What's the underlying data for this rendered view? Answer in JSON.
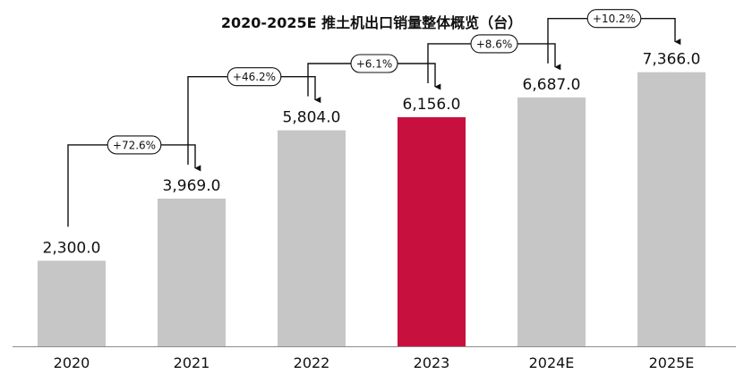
{
  "chart_data": {
    "type": "bar",
    "title": "2020-2025E 推土机出口销量整体概览（台）",
    "categories": [
      "2020",
      "2021",
      "2022",
      "2023",
      "2024E",
      "2025E"
    ],
    "values": [
      2300.0,
      3969.0,
      5804.0,
      6156.0,
      6687.0,
      7366.0
    ],
    "value_labels": [
      "2,300.0",
      "3,969.0",
      "5,804.0",
      "6,156.0",
      "6,687.0",
      "7,366.0"
    ],
    "growth_labels": [
      "+72.6%",
      "+46.2%",
      "+6.1%",
      "+8.6%",
      "+10.2%"
    ],
    "highlight_index": 3,
    "ylim": [
      0,
      8200
    ],
    "grid": false,
    "legend": "none",
    "colors": {
      "bar": "#c6c6c6",
      "highlight": "#c8103e",
      "text": "#111111",
      "axis": "#8c8c8c"
    }
  }
}
